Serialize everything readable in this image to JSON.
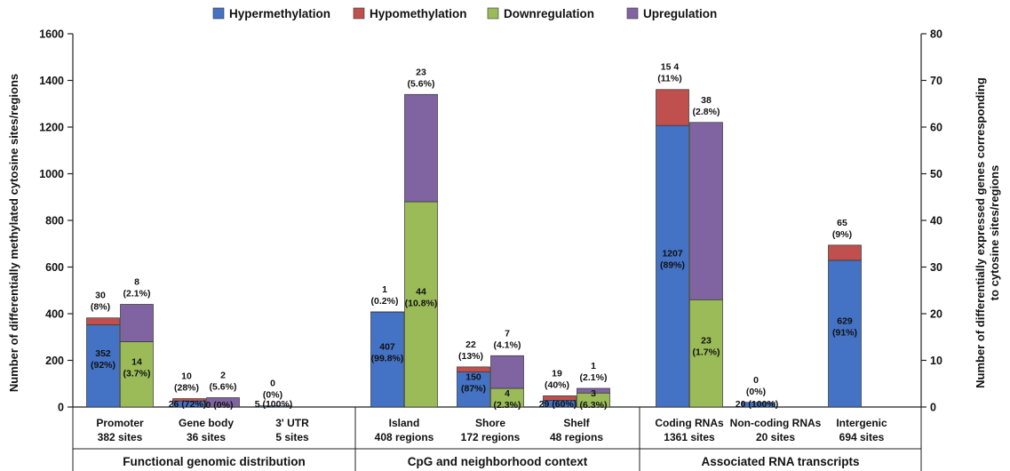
{
  "chart_data": {
    "type": "bar",
    "stacked": true,
    "legend": {
      "placement": "top",
      "entries": [
        {
          "name": "Hypermethylation",
          "color": "#4472c4"
        },
        {
          "name": "Hypomethylation",
          "color": "#c0504d"
        },
        {
          "name": "Downregulation",
          "color": "#9bbb59"
        },
        {
          "name": "Upregulation",
          "color": "#8064a2"
        }
      ]
    },
    "ylabel_left": "Number of differentially methylated cytosine sites/regions",
    "ylabel_right_line1": "Number of differentially expressed genes corresponding",
    "ylabel_right_line2": "to cytosine sites/regions",
    "ylim_left": [
      0,
      1600
    ],
    "ylim_right": [
      0,
      80
    ],
    "yticks_left": [
      "0",
      "200",
      "400",
      "600",
      "800",
      "1000",
      "1200",
      "1400",
      "1600"
    ],
    "yticks_right": [
      "0",
      "10",
      "20",
      "30",
      "40",
      "50",
      "60",
      "70",
      "80"
    ],
    "groups": [
      {
        "label": "Functional genomic distribution"
      },
      {
        "label": "CpG and neighborhood context"
      },
      {
        "label": "Associated RNA transcripts"
      }
    ],
    "categories": [
      {
        "line1": "Promoter",
        "line2": "382 sites"
      },
      {
        "line1": "Gene body",
        "line2": "36 sites"
      },
      {
        "line1": "3' UTR",
        "line2": "5 sites"
      },
      {
        "line1": "Island",
        "line2": "408 regions"
      },
      {
        "line1": "Shore",
        "line2": "172 regions"
      },
      {
        "line1": "Shelf",
        "line2": "48 regions"
      },
      {
        "line1": "Coding RNAs",
        "line2": "1361 sites"
      },
      {
        "line1": "Non-coding RNAs",
        "line2": "20 sites"
      },
      {
        "line1": "Intergenic",
        "line2": "694 sites"
      }
    ],
    "methylation_bars": [
      {
        "hyper": 352,
        "hypo": 30,
        "hyper_label": [
          "352",
          "(92%)"
        ],
        "hypo_label": [
          "30",
          "(8%)"
        ]
      },
      {
        "hyper": 26,
        "hypo": 10,
        "hyper_label": [
          "26 (72%)"
        ],
        "hypo_label": [
          "10",
          "(28%)"
        ]
      },
      {
        "hyper": 5,
        "hypo": 0,
        "hyper_label": [
          "5 (100%)"
        ],
        "hypo_label": [
          "0",
          "(0%)"
        ]
      },
      {
        "hyper": 407,
        "hypo": 1,
        "hyper_label": [
          "407",
          "(99.8%)"
        ],
        "hypo_label": [
          "1",
          "(0.2%)"
        ]
      },
      {
        "hyper": 150,
        "hypo": 22,
        "hyper_label": [
          "150",
          "(87%)"
        ],
        "hypo_label": [
          "22",
          "(13%)"
        ]
      },
      {
        "hyper": 29,
        "hypo": 19,
        "hyper_label": [
          "29 (60%)"
        ],
        "hypo_label": [
          "19",
          "(40%)"
        ]
      },
      {
        "hyper": 1207,
        "hypo": 154,
        "hyper_label": [
          "1207",
          "(89%)"
        ],
        "hypo_label": [
          "15 4",
          "(11%)"
        ]
      },
      {
        "hyper": 20,
        "hypo": 0,
        "hyper_label": [
          "20 (100%)"
        ],
        "hypo_label": [
          "0",
          "(0%)"
        ]
      },
      {
        "hyper": 629,
        "hypo": 65,
        "hyper_label": [
          "629",
          "(91%)"
        ],
        "hypo_label": [
          "65",
          "(9%)"
        ]
      }
    ],
    "expression_bars": [
      {
        "category_index": 0,
        "down": 14,
        "up": 8,
        "down_label": [
          "14",
          "(3.7%)"
        ],
        "up_label": [
          "8",
          "(2.1%)"
        ]
      },
      {
        "category_index": 1,
        "down": 0,
        "up": 2,
        "down_label": [
          "0 (0%)"
        ],
        "up_label": [
          "2",
          "(5.6%)"
        ]
      },
      {
        "category_index": 3,
        "down": 44,
        "up": 23,
        "down_label": [
          "44",
          "(10.8%)"
        ],
        "up_label": [
          "23",
          "(5.6%)"
        ]
      },
      {
        "category_index": 4,
        "down": 4,
        "up": 7,
        "down_label": [
          "4",
          "(2.3%)"
        ],
        "up_label": [
          "7",
          "(4.1%)"
        ]
      },
      {
        "category_index": 5,
        "down": 3,
        "up": 1,
        "down_label": [
          "3",
          "(6.3%)"
        ],
        "up_label": [
          "1",
          "(2.1%)"
        ]
      },
      {
        "category_index": 6,
        "down": 23,
        "up": 38,
        "down_label": [
          "23",
          "(1.7%)"
        ],
        "up_label": [
          "38",
          "(2.8%)"
        ]
      }
    ]
  }
}
